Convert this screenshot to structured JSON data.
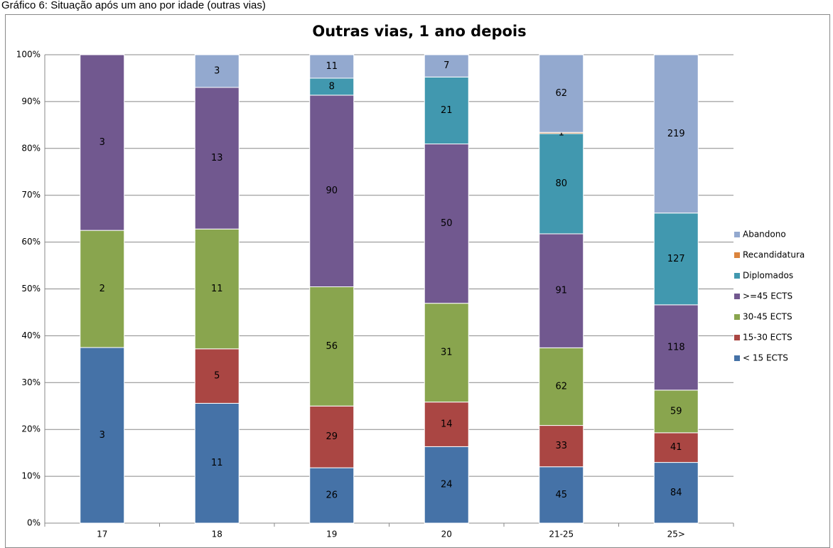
{
  "caption": "Gráfico 6: Situação após um ano por idade (outras vias)",
  "chart_data": {
    "type": "stacked_bar",
    "stacking": "percent",
    "title": "Outras vias, 1 ano depois",
    "categories": [
      "17",
      "18",
      "19",
      "20",
      "21-25",
      "25>"
    ],
    "series": [
      {
        "name": "< 15 ECTS",
        "color": "#4572a7",
        "values": [
          3,
          11,
          26,
          24,
          45,
          84
        ]
      },
      {
        "name": "15-30 ECTS",
        "color": "#aa4643",
        "values": [
          null,
          5,
          29,
          14,
          33,
          41
        ]
      },
      {
        "name": "30-45 ECTS",
        "color": "#89a54e",
        "values": [
          2,
          11,
          56,
          31,
          62,
          59
        ]
      },
      {
        "name": ">=45 ECTS",
        "color": "#71588f",
        "values": [
          3,
          13,
          90,
          50,
          91,
          118
        ]
      },
      {
        "name": "Diplomados",
        "color": "#4198af",
        "values": [
          null,
          null,
          8,
          21,
          80,
          127
        ]
      },
      {
        "name": "Recandidatura",
        "color": "#db843d",
        "values": [
          null,
          null,
          null,
          null,
          1,
          null
        ]
      },
      {
        "name": "Abandono",
        "color": "#93a9cf",
        "values": [
          null,
          3,
          11,
          7,
          62,
          219
        ]
      }
    ],
    "ylim": [
      0,
      100
    ],
    "yticks": [
      {
        "value": 0,
        "label": "0%"
      },
      {
        "value": 10,
        "label": "10%"
      },
      {
        "value": 20,
        "label": "20%"
      },
      {
        "value": 30,
        "label": "30%"
      },
      {
        "value": 40,
        "label": "40%"
      },
      {
        "value": 50,
        "label": "50%"
      },
      {
        "value": 60,
        "label": "60%"
      },
      {
        "value": 70,
        "label": "70%"
      },
      {
        "value": 80,
        "label": "80%"
      },
      {
        "value": 90,
        "label": "90%"
      },
      {
        "value": 100,
        "label": "100%"
      }
    ],
    "grid": true,
    "legend": "right"
  }
}
